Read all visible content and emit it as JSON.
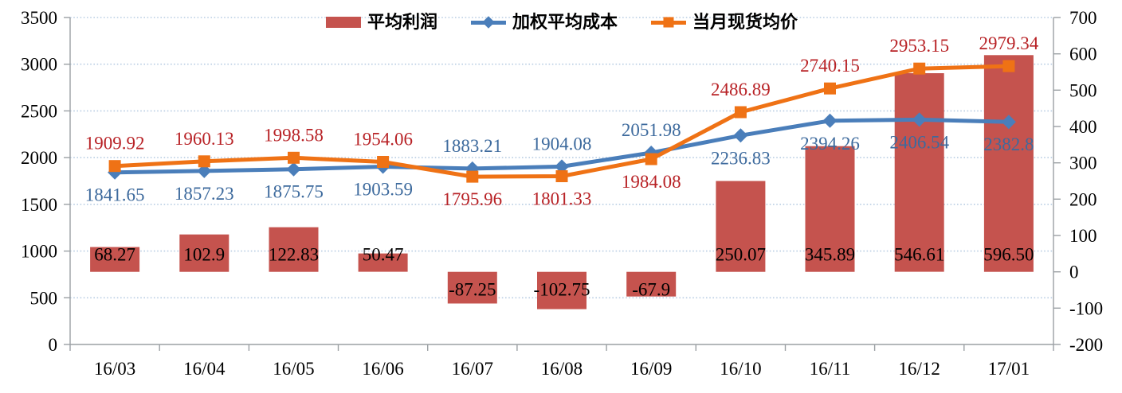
{
  "chart_data": {
    "type": "bar+line combo",
    "title": "",
    "categories": [
      "16/03",
      "16/04",
      "16/05",
      "16/06",
      "16/07",
      "16/08",
      "16/09",
      "16/10",
      "16/11",
      "16/12",
      "17/01"
    ],
    "series": [
      {
        "name": "平均利润",
        "type": "bar",
        "axis": "right",
        "color": "#C5534E",
        "label_color": "#000000",
        "values": [
          68.27,
          102.9,
          122.83,
          50.47,
          -87.25,
          -102.75,
          -67.9,
          250.07,
          345.89,
          546.61,
          596.5
        ],
        "labels": [
          "68.27",
          "102.9",
          "122.83",
          "50.47",
          "-87.25",
          "-102.75",
          "-67.9",
          "250.07",
          "345.89",
          "546.61",
          "596.50"
        ]
      },
      {
        "name": "加权平均成本",
        "type": "line",
        "marker": "diamond",
        "axis": "left",
        "color": "#4A7EBA",
        "label_color": "#3D6A9D",
        "values": [
          1841.65,
          1857.23,
          1875.75,
          1903.59,
          1883.21,
          1904.08,
          2051.98,
          2236.83,
          2394.26,
          2406.54,
          2382.8
        ],
        "labels": [
          "1841.65",
          "1857.23",
          "1875.75",
          "1903.59",
          "1883.21",
          "1904.08",
          "2051.98",
          "2236.83",
          "2394.26",
          "2406.54",
          "2382.8"
        ],
        "label_side": [
          "below",
          "below",
          "below",
          "below",
          "above",
          "above",
          "above",
          "below",
          "below",
          "below",
          "below"
        ]
      },
      {
        "name": "当月现货均价",
        "type": "line",
        "marker": "square",
        "axis": "left",
        "color": "#EF7215",
        "label_color": "#B82226",
        "values": [
          1909.92,
          1960.13,
          1998.58,
          1954.06,
          1795.96,
          1801.33,
          1984.08,
          2486.89,
          2740.15,
          2953.15,
          2979.34
        ],
        "labels": [
          "1909.92",
          "1960.13",
          "1998.58",
          "1954.06",
          "1795.96",
          "1801.33",
          "1984.08",
          "2486.89",
          "2740.15",
          "2953.15",
          "2979.34"
        ],
        "label_side": [
          "above",
          "above",
          "above",
          "above",
          "below",
          "below",
          "below",
          "above",
          "above",
          "above",
          "above"
        ]
      }
    ],
    "y_left": {
      "min": 0,
      "max": 3500,
      "step": 500,
      "ticks": [
        "3500",
        "3000",
        "2500",
        "2000",
        "1500",
        "1000",
        "500",
        "0"
      ]
    },
    "y_right": {
      "min": -200,
      "max": 700,
      "step": 100,
      "ticks": [
        "700",
        "600",
        "500",
        "400",
        "300",
        "200",
        "100",
        "0",
        "-100",
        "-200"
      ]
    },
    "grid": true,
    "gridline_style": "dotted",
    "legend_position": "top-center",
    "style": {
      "grid_color": "#B9CDE3",
      "axis_color": "#9BA0A4",
      "tick_label_color": "#000000"
    }
  }
}
